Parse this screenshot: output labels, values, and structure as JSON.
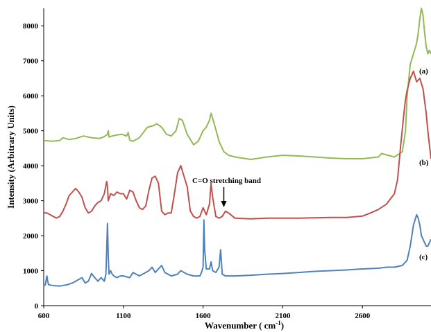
{
  "chart_data": {
    "type": "line",
    "xlabel": "Wavenumber ( cm",
    "xlabel_sup": "-1",
    "xlabel_end": ")",
    "ylabel": "Intensity (Arbitrary Units)",
    "xlim": [
      600,
      3030
    ],
    "ylim": [
      0,
      8500
    ],
    "xticks": [
      "600",
      "1100",
      "1600",
      "2100",
      "2600"
    ],
    "xtick_values": [
      600,
      1100,
      1600,
      2100,
      2600
    ],
    "yticks": [
      "0",
      "1000",
      "2000",
      "3000",
      "4000",
      "5000",
      "6000",
      "7000",
      "8000"
    ],
    "ytick_values": [
      0,
      1000,
      2000,
      3000,
      4000,
      5000,
      6000,
      7000,
      8000
    ],
    "grid": false,
    "series": [
      {
        "name": "(a)",
        "color": "#92b956",
        "x": [
          600,
          650,
          700,
          720,
          760,
          800,
          850,
          900,
          950,
          980,
          1000,
          1005,
          1010,
          1030,
          1060,
          1090,
          1120,
          1130,
          1140,
          1160,
          1200,
          1250,
          1290,
          1310,
          1340,
          1370,
          1400,
          1430,
          1450,
          1470,
          1500,
          1540,
          1570,
          1600,
          1620,
          1640,
          1650,
          1670,
          1700,
          1730,
          1760,
          1800,
          1900,
          2000,
          2100,
          2200,
          2300,
          2400,
          2500,
          2600,
          2700,
          2720,
          2760,
          2800,
          2850,
          2870,
          2880,
          2900,
          2920,
          2940,
          2950,
          2960,
          2970,
          2980,
          2990,
          3000,
          3010,
          3020,
          3030
        ],
        "y": [
          4720,
          4700,
          4720,
          4800,
          4750,
          4780,
          4850,
          4800,
          4780,
          4830,
          4900,
          5000,
          4820,
          4850,
          4880,
          4900,
          4850,
          4950,
          4730,
          4700,
          4800,
          5100,
          5150,
          5200,
          5100,
          4900,
          4850,
          5000,
          5350,
          5300,
          4900,
          4600,
          4700,
          5000,
          5100,
          5300,
          5500,
          5200,
          4700,
          4400,
          4300,
          4250,
          4180,
          4250,
          4300,
          4280,
          4250,
          4220,
          4200,
          4200,
          4250,
          4350,
          4300,
          4250,
          4400,
          5000,
          6000,
          6900,
          7200,
          7500,
          7800,
          8200,
          8500,
          8300,
          7800,
          7400,
          7200,
          7300,
          7200
        ]
      },
      {
        "name": "(b)",
        "color": "#c0504d",
        "x": [
          600,
          620,
          640,
          660,
          680,
          700,
          720,
          740,
          760,
          780,
          800,
          820,
          840,
          860,
          880,
          900,
          920,
          940,
          960,
          980,
          995,
          1000,
          1005,
          1020,
          1040,
          1060,
          1080,
          1100,
          1120,
          1140,
          1160,
          1180,
          1200,
          1220,
          1240,
          1260,
          1280,
          1300,
          1320,
          1340,
          1360,
          1380,
          1400,
          1420,
          1440,
          1460,
          1480,
          1500,
          1520,
          1540,
          1560,
          1580,
          1600,
          1620,
          1640,
          1650,
          1660,
          1680,
          1700,
          1720,
          1740,
          1760,
          1800,
          1900,
          2000,
          2100,
          2200,
          2300,
          2400,
          2500,
          2600,
          2650,
          2700,
          2750,
          2800,
          2820,
          2840,
          2860,
          2870,
          2880,
          2900,
          2920,
          2940,
          2960,
          2980,
          3000,
          3010,
          3020,
          3030
        ],
        "y": [
          2650,
          2650,
          2600,
          2550,
          2500,
          2550,
          2700,
          2900,
          3150,
          3250,
          3350,
          3250,
          3100,
          2800,
          2650,
          2700,
          2850,
          2950,
          3000,
          3200,
          3550,
          3400,
          3000,
          3200,
          3150,
          3250,
          3200,
          3200,
          3050,
          3300,
          3250,
          3000,
          2800,
          2750,
          2850,
          3300,
          3650,
          3700,
          3500,
          2700,
          2600,
          2650,
          2650,
          3200,
          3800,
          4000,
          3700,
          3400,
          2700,
          2550,
          2500,
          2550,
          2800,
          2600,
          2900,
          3500,
          3100,
          2550,
          2500,
          2550,
          2700,
          2650,
          2500,
          2480,
          2500,
          2500,
          2500,
          2510,
          2520,
          2520,
          2560,
          2650,
          2750,
          2900,
          3200,
          3600,
          4600,
          5500,
          5900,
          6150,
          6500,
          6700,
          6400,
          6500,
          6200,
          5500,
          5000,
          4600,
          4200
        ]
      },
      {
        "name": "(c)",
        "color": "#4f81bd",
        "x": [
          600,
          610,
          620,
          625,
          630,
          650,
          700,
          750,
          780,
          800,
          840,
          860,
          880,
          900,
          920,
          940,
          960,
          980,
          990,
          1000,
          1005,
          1010,
          1020,
          1030,
          1040,
          1060,
          1080,
          1100,
          1140,
          1160,
          1180,
          1200,
          1220,
          1240,
          1260,
          1280,
          1300,
          1320,
          1340,
          1360,
          1400,
          1440,
          1460,
          1500,
          1540,
          1580,
          1590,
          1600,
          1605,
          1610,
          1620,
          1640,
          1650,
          1660,
          1680,
          1700,
          1710,
          1720,
          1740,
          1760,
          1800,
          1900,
          2000,
          2100,
          2200,
          2300,
          2400,
          2500,
          2600,
          2700,
          2750,
          2800,
          2850,
          2880,
          2900,
          2920,
          2940,
          2950,
          2960,
          2970,
          2980,
          2990,
          3000,
          3010,
          3020,
          3030
        ],
        "y": [
          560,
          600,
          850,
          700,
          600,
          580,
          560,
          600,
          650,
          700,
          800,
          650,
          700,
          920,
          800,
          700,
          800,
          700,
          900,
          2350,
          1400,
          900,
          1000,
          900,
          850,
          800,
          850,
          850,
          800,
          950,
          900,
          850,
          900,
          950,
          1000,
          1100,
          950,
          1050,
          1150,
          950,
          850,
          900,
          1000,
          900,
          850,
          850,
          950,
          1100,
          2450,
          1600,
          1050,
          1050,
          1250,
          1000,
          950,
          1100,
          1600,
          900,
          850,
          850,
          850,
          870,
          900,
          920,
          950,
          980,
          1000,
          1020,
          1050,
          1070,
          1100,
          1100,
          1150,
          1300,
          1700,
          2300,
          2600,
          2500,
          2300,
          2000,
          1900,
          1800,
          1700,
          1700,
          1800,
          1900
        ]
      }
    ],
    "annotations": [
      {
        "text": "C=O stretching band",
        "x": 1730,
        "y": 2700,
        "arrow_to_y": 2650
      }
    ]
  }
}
